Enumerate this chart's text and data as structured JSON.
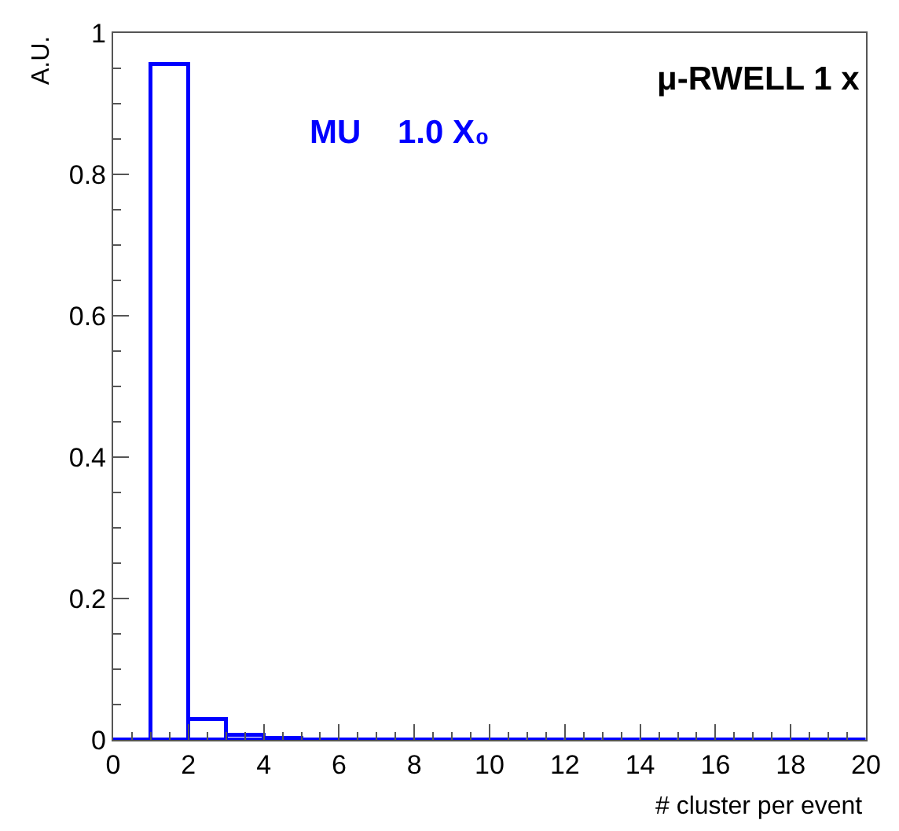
{
  "chart_data": {
    "type": "histogram",
    "title": "μ-RWELL 1 x",
    "xlabel": "# cluster per event",
    "ylabel": "A.U.",
    "annotations": [
      "MU    1.0 X₀"
    ],
    "bins": [
      0,
      1,
      2,
      3,
      4,
      5,
      6,
      7,
      8,
      9,
      10,
      11,
      12,
      13,
      14,
      15,
      16,
      17,
      18,
      19,
      20
    ],
    "values": [
      0,
      0.955,
      0.03,
      0.006,
      0.002,
      0.001,
      0.001,
      0,
      0,
      0,
      0,
      0,
      0,
      0,
      0,
      0,
      0,
      0,
      0,
      0
    ],
    "color": "#0000ff",
    "xlim": [
      0,
      20
    ],
    "xticks": [
      0,
      2,
      4,
      6,
      8,
      10,
      12,
      14,
      16,
      18,
      20
    ],
    "ylim": [
      0,
      1
    ],
    "yticks": [
      0,
      0.2,
      0.4,
      0.6,
      0.8,
      1
    ]
  }
}
